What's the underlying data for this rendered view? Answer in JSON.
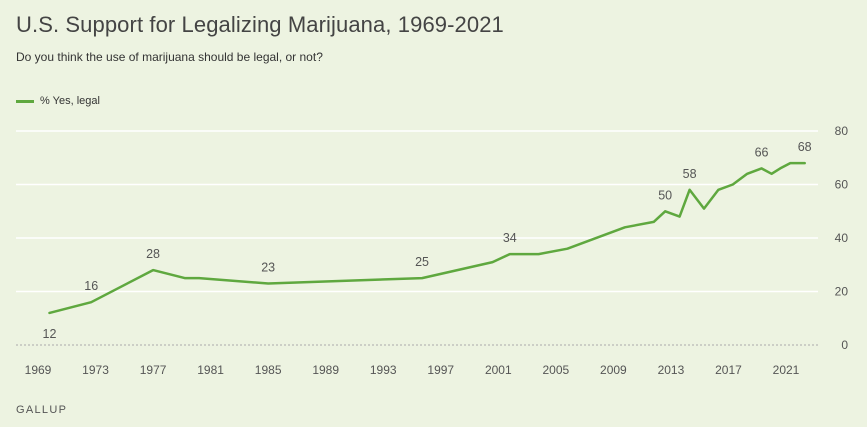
{
  "title": "U.S. Support for Legalizing Marijuana, 1969-2021",
  "subtitle": "Do you think the use of marijuana should be legal, or not?",
  "source": "GALLUP",
  "colors": {
    "line": "#5fa83f",
    "grid": "#ffffff",
    "background": "#edf3e1"
  },
  "chart_data": {
    "type": "line",
    "title": "U.S. Support for Legalizing Marijuana, 1969-2021",
    "subtitle": "Do you think the use of marijuana should be legal, or not?",
    "xlabel": "",
    "ylabel": "",
    "xlim": [
      1968,
      2023
    ],
    "ylim": [
      0,
      80
    ],
    "x_ticks": [
      "1969",
      "1973",
      "1977",
      "1981",
      "1985",
      "1989",
      "1993",
      "1997",
      "2001",
      "2005",
      "2009",
      "2013",
      "2017",
      "2021"
    ],
    "y_ticks": [
      "0",
      "20",
      "40",
      "60",
      "80"
    ],
    "y_axis_position": "right",
    "grid": true,
    "legend": "top-left",
    "series": [
      {
        "name": "% Yes, legal",
        "x": [
          1969.8,
          1972.7,
          1977.0,
          1979.2,
          1980.2,
          1985.0,
          1995.7,
          2000.6,
          2001.8,
          2003.8,
          2005.8,
          2009.8,
          2011.8,
          2012.6,
          2013.6,
          2014.3,
          2015.3,
          2016.3,
          2017.3,
          2018.3,
          2019.3,
          2020.0,
          2020.6,
          2021.3,
          2022.3
        ],
        "y": [
          12,
          16,
          28,
          25,
          25,
          23,
          25,
          31,
          34,
          34,
          36,
          44,
          46,
          50,
          48,
          58,
          51,
          58,
          60,
          64,
          66,
          64,
          66,
          68,
          68
        ]
      }
    ],
    "data_labels": [
      {
        "x": 1969.8,
        "y": 12,
        "text": "12",
        "position": "below"
      },
      {
        "x": 1972.7,
        "y": 16,
        "text": "16",
        "position": "above"
      },
      {
        "x": 1977.0,
        "y": 28,
        "text": "28",
        "position": "above"
      },
      {
        "x": 1985.0,
        "y": 23,
        "text": "23",
        "position": "above"
      },
      {
        "x": 1995.7,
        "y": 25,
        "text": "25",
        "position": "above"
      },
      {
        "x": 2001.8,
        "y": 34,
        "text": "34",
        "position": "above"
      },
      {
        "x": 2012.6,
        "y": 50,
        "text": "50",
        "position": "above"
      },
      {
        "x": 2014.3,
        "y": 58,
        "text": "58",
        "position": "above"
      },
      {
        "x": 2019.3,
        "y": 66,
        "text": "66",
        "position": "above"
      },
      {
        "x": 2022.3,
        "y": 68,
        "text": "68",
        "position": "above"
      }
    ]
  }
}
